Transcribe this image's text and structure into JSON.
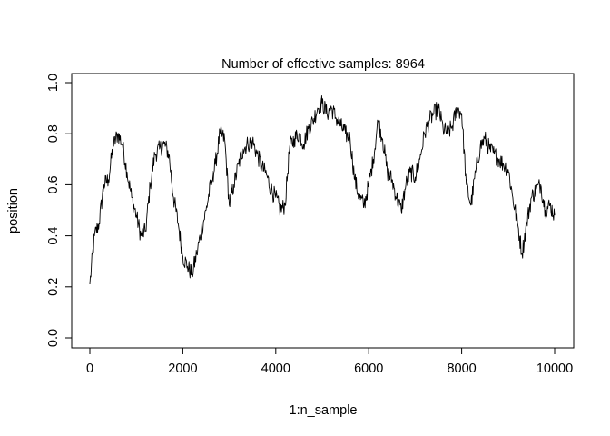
{
  "chart_data": {
    "type": "line",
    "title": "Number of effective samples: 8964",
    "xlabel": "1:n_sample",
    "ylabel": "position",
    "xlim": [
      0,
      10000
    ],
    "ylim": [
      0.0,
      1.0
    ],
    "xticks": [
      "0",
      "2000",
      "4000",
      "6000",
      "8000",
      "10000"
    ],
    "yticks": [
      "0.0",
      "0.2",
      "0.4",
      "0.6",
      "0.8",
      "1.0"
    ],
    "grid": false,
    "line_color": "#000000",
    "series": [
      {
        "x": [
          0,
          100,
          200,
          300,
          400,
          500,
          600,
          700,
          800,
          900,
          1000,
          1100,
          1200,
          1300,
          1400,
          1500,
          1600,
          1700,
          1800,
          1900,
          2000,
          2100,
          2200,
          2300,
          2400,
          2500,
          2600,
          2700,
          2800,
          2900,
          3000,
          3100,
          3200,
          3300,
          3400,
          3500,
          3600,
          3700,
          3800,
          3900,
          4000,
          4100,
          4200,
          4300,
          4400,
          4500,
          4600,
          4700,
          4800,
          4900,
          5000,
          5100,
          5200,
          5300,
          5400,
          5500,
          5600,
          5700,
          5800,
          5900,
          6000,
          6100,
          6200,
          6300,
          6400,
          6500,
          6600,
          6700,
          6800,
          6900,
          7000,
          7100,
          7200,
          7300,
          7400,
          7500,
          7600,
          7700,
          7800,
          7900,
          8000,
          8100,
          8200,
          8300,
          8400,
          8500,
          8600,
          8700,
          8800,
          8900,
          9000,
          9100,
          9200,
          9300,
          9400,
          9500,
          9600,
          9700,
          9800,
          9900,
          10000
        ],
        "values": [
          0.21,
          0.4,
          0.45,
          0.6,
          0.62,
          0.75,
          0.8,
          0.76,
          0.65,
          0.55,
          0.48,
          0.4,
          0.42,
          0.6,
          0.72,
          0.74,
          0.76,
          0.72,
          0.55,
          0.45,
          0.32,
          0.28,
          0.25,
          0.33,
          0.42,
          0.5,
          0.6,
          0.68,
          0.8,
          0.78,
          0.52,
          0.6,
          0.68,
          0.74,
          0.76,
          0.77,
          0.72,
          0.67,
          0.64,
          0.58,
          0.55,
          0.5,
          0.52,
          0.75,
          0.78,
          0.8,
          0.76,
          0.82,
          0.85,
          0.9,
          0.92,
          0.88,
          0.9,
          0.86,
          0.83,
          0.8,
          0.78,
          0.62,
          0.55,
          0.52,
          0.6,
          0.7,
          0.85,
          0.78,
          0.65,
          0.62,
          0.55,
          0.5,
          0.6,
          0.65,
          0.63,
          0.7,
          0.8,
          0.85,
          0.88,
          0.9,
          0.82,
          0.8,
          0.83,
          0.9,
          0.88,
          0.6,
          0.52,
          0.65,
          0.75,
          0.78,
          0.74,
          0.72,
          0.7,
          0.68,
          0.66,
          0.55,
          0.45,
          0.33,
          0.45,
          0.55,
          0.58,
          0.6,
          0.5,
          0.52,
          0.48
        ]
      }
    ]
  }
}
